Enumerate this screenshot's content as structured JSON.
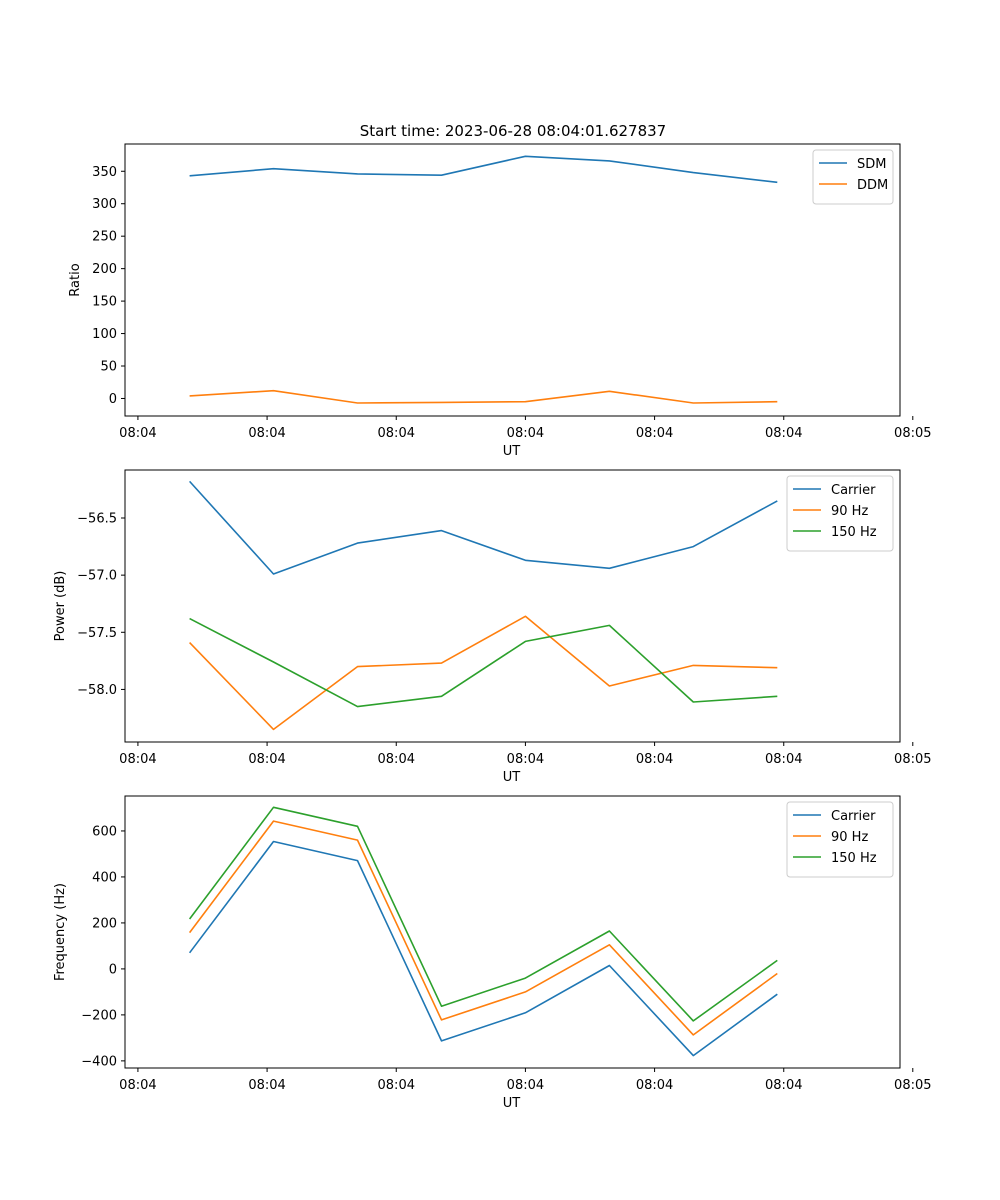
{
  "figure": {
    "title": "Start time: 2023-06-28 08:04:01.627837"
  },
  "chart_data": [
    {
      "type": "line",
      "title": "Start time: 2023-06-28 08:04:01.627837",
      "xlabel": "UT",
      "ylabel": "Ratio",
      "xtick_labels": [
        "08:04",
        "08:04",
        "08:04",
        "08:04",
        "08:04",
        "08:04",
        "08:05"
      ],
      "xlim": [
        -0.1,
        5.9
      ],
      "ylim": [
        -27,
        392
      ],
      "yticks": [
        0,
        50,
        100,
        150,
        200,
        250,
        300,
        350
      ],
      "ytick_labels": [
        "0",
        "50",
        "100",
        "150",
        "200",
        "250",
        "300",
        "350"
      ],
      "x": [
        0.4,
        1.05,
        1.7,
        2.35,
        3.0,
        3.65,
        4.3,
        4.95
      ],
      "legend_position": "top-right",
      "grid": false,
      "series": [
        {
          "name": "SDM",
          "color": "#1f77b4",
          "values": [
            343,
            354,
            346,
            344,
            373,
            366,
            348,
            333
          ]
        },
        {
          "name": "DDM",
          "color": "#ff7f0e",
          "values": [
            4,
            12,
            -7,
            -6,
            -5,
            11,
            -7,
            -5
          ]
        }
      ]
    },
    {
      "type": "line",
      "xlabel": "UT",
      "ylabel": "Power (dB)",
      "xtick_labels": [
        "08:04",
        "08:04",
        "08:04",
        "08:04",
        "08:04",
        "08:04",
        "08:05"
      ],
      "xlim": [
        -0.1,
        5.9
      ],
      "ylim": [
        -58.46,
        -56.08
      ],
      "yticks": [
        -58.0,
        -57.5,
        -57.0,
        -56.5
      ],
      "ytick_labels": [
        "−58.0",
        "−57.5",
        "−57.0",
        "−56.5"
      ],
      "x": [
        0.4,
        1.05,
        1.7,
        2.35,
        3.0,
        3.65,
        4.3,
        4.95
      ],
      "legend_position": "top-right",
      "grid": false,
      "series": [
        {
          "name": "Carrier",
          "color": "#1f77b4",
          "values": [
            -56.18,
            -56.99,
            -56.72,
            -56.61,
            -56.87,
            -56.94,
            -56.75,
            -56.35
          ]
        },
        {
          "name": "90 Hz",
          "color": "#ff7f0e",
          "values": [
            -57.59,
            -58.35,
            -57.8,
            -57.77,
            -57.36,
            -57.97,
            -57.79,
            -57.81
          ]
        },
        {
          "name": "150 Hz",
          "color": "#2ca02c",
          "values": [
            -57.38,
            -57.76,
            -58.15,
            -58.06,
            -57.58,
            -57.44,
            -58.11,
            -58.06
          ]
        }
      ]
    },
    {
      "type": "line",
      "xlabel": "UT",
      "ylabel": "Frequency (Hz)",
      "xtick_labels": [
        "08:04",
        "08:04",
        "08:04",
        "08:04",
        "08:04",
        "08:04",
        "08:05"
      ],
      "xlim": [
        -0.1,
        5.9
      ],
      "ylim": [
        -431,
        752
      ],
      "yticks": [
        -400,
        -200,
        0,
        200,
        400,
        600
      ],
      "ytick_labels": [
        "−400",
        "−200",
        "0",
        "200",
        "400",
        "600"
      ],
      "x": [
        0.4,
        1.05,
        1.7,
        2.35,
        3.0,
        3.65,
        4.3,
        4.95
      ],
      "legend_position": "top-right",
      "grid": false,
      "series": [
        {
          "name": "Carrier",
          "color": "#1f77b4",
          "values": [
            70,
            554,
            471,
            -313,
            -191,
            15,
            -377,
            -110
          ]
        },
        {
          "name": "90 Hz",
          "color": "#ff7f0e",
          "values": [
            158,
            643,
            560,
            -222,
            -100,
            105,
            -287,
            -20
          ]
        },
        {
          "name": "150 Hz",
          "color": "#2ca02c",
          "values": [
            217,
            703,
            620,
            -162,
            -40,
            165,
            -226,
            37
          ]
        }
      ]
    }
  ]
}
